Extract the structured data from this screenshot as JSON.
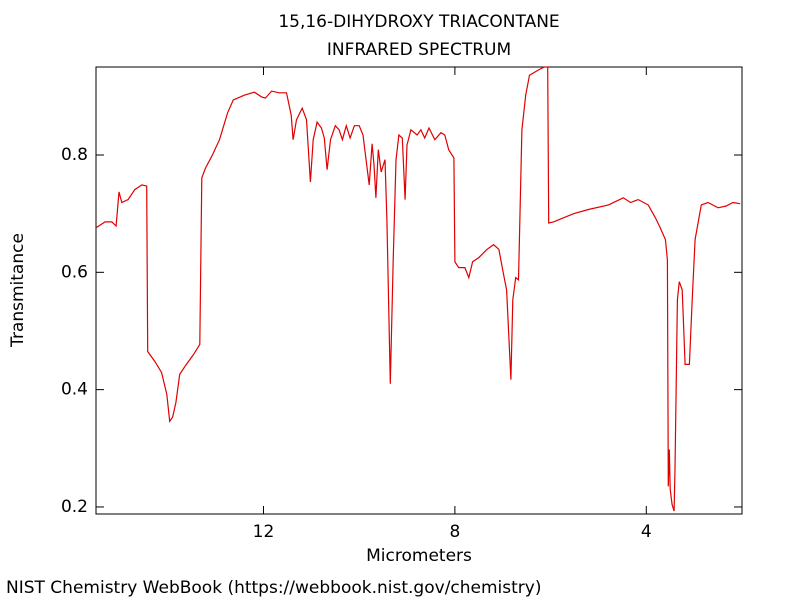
{
  "chart_data": {
    "type": "line",
    "title": "15,16-DIHYDROXY TRIACONTANE",
    "subtitle": "INFRARED SPECTRUM",
    "x_label": "Micrometers",
    "y_label": "Transmitance",
    "source": "NIST Chemistry WebBook (https://webbook.nist.gov/chemistry)",
    "xlim": [
      15.5,
      2
    ],
    "ylim": [
      0.188,
      0.95
    ],
    "xticks": [
      12,
      8,
      4
    ],
    "yticks": [
      0.2,
      0.4,
      0.6,
      0.8
    ],
    "series": [
      {
        "color": "#e00000",
        "x": [
          15.5,
          15.31,
          15.17,
          15.08,
          15.02,
          14.96,
          14.83,
          14.69,
          14.54,
          14.44,
          14.42,
          14.27,
          14.13,
          14.02,
          13.96,
          13.9,
          13.83,
          13.75,
          13.63,
          13.46,
          13.33,
          13.29,
          13.21,
          13.08,
          12.92,
          12.75,
          12.63,
          12.4,
          12.19,
          12.04,
          11.96,
          11.83,
          11.67,
          11.52,
          11.42,
          11.38,
          11.31,
          11.19,
          11.1,
          11.02,
          10.96,
          10.88,
          10.79,
          10.73,
          10.67,
          10.6,
          10.5,
          10.42,
          10.35,
          10.27,
          10.19,
          10.1,
          10.0,
          9.92,
          9.83,
          9.79,
          9.73,
          9.69,
          9.65,
          9.6,
          9.54,
          9.46,
          9.42,
          9.35,
          9.29,
          9.23,
          9.17,
          9.1,
          9.04,
          9.0,
          8.92,
          8.79,
          8.71,
          8.63,
          8.54,
          8.42,
          8.29,
          8.21,
          8.13,
          8.02,
          8.0,
          7.92,
          7.79,
          7.71,
          7.63,
          7.5,
          7.33,
          7.19,
          7.08,
          7.0,
          6.92,
          6.83,
          6.79,
          6.73,
          6.67,
          6.6,
          6.52,
          6.44,
          6.25,
          6.13,
          6.06,
          6.04,
          5.94,
          5.73,
          5.52,
          5.21,
          4.79,
          4.48,
          4.33,
          4.17,
          3.96,
          3.81,
          3.71,
          3.6,
          3.56,
          3.54,
          3.52,
          3.5,
          3.46,
          3.42,
          3.4,
          3.35,
          3.31,
          3.25,
          3.19,
          3.1,
          3.04,
          2.98,
          2.85,
          2.71,
          2.5,
          2.33,
          2.19,
          2.04
        ],
        "values": [
          0.676,
          0.686,
          0.686,
          0.679,
          0.737,
          0.719,
          0.724,
          0.741,
          0.749,
          0.747,
          0.465,
          0.448,
          0.429,
          0.392,
          0.346,
          0.353,
          0.378,
          0.426,
          0.441,
          0.46,
          0.477,
          0.761,
          0.778,
          0.798,
          0.826,
          0.872,
          0.894,
          0.902,
          0.907,
          0.899,
          0.897,
          0.909,
          0.906,
          0.906,
          0.868,
          0.826,
          0.86,
          0.88,
          0.86,
          0.754,
          0.826,
          0.856,
          0.846,
          0.829,
          0.775,
          0.826,
          0.85,
          0.843,
          0.826,
          0.85,
          0.829,
          0.85,
          0.85,
          0.834,
          0.775,
          0.749,
          0.819,
          0.783,
          0.727,
          0.809,
          0.771,
          0.792,
          0.69,
          0.41,
          0.621,
          0.792,
          0.834,
          0.829,
          0.724,
          0.817,
          0.843,
          0.834,
          0.843,
          0.829,
          0.846,
          0.826,
          0.838,
          0.834,
          0.809,
          0.795,
          0.618,
          0.608,
          0.608,
          0.591,
          0.618,
          0.625,
          0.639,
          0.647,
          0.639,
          0.604,
          0.57,
          0.417,
          0.553,
          0.591,
          0.587,
          0.843,
          0.902,
          0.936,
          0.945,
          0.95,
          0.95,
          0.684,
          0.686,
          0.693,
          0.7,
          0.707,
          0.715,
          0.727,
          0.719,
          0.724,
          0.715,
          0.693,
          0.676,
          0.656,
          0.621,
          0.235,
          0.298,
          0.23,
          0.204,
          0.193,
          0.264,
          0.553,
          0.584,
          0.57,
          0.443,
          0.443,
          0.553,
          0.656,
          0.715,
          0.719,
          0.71,
          0.713,
          0.719,
          0.717
        ]
      }
    ]
  }
}
